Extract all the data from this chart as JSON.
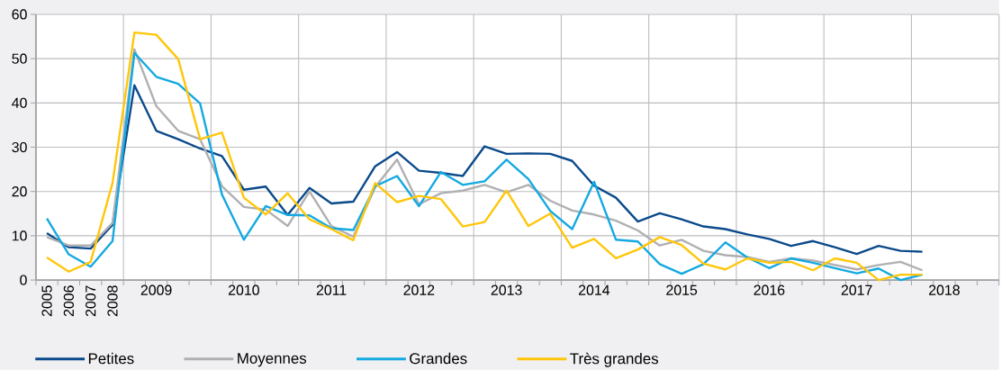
{
  "chart_data": {
    "type": "line",
    "categories": [
      "2005",
      "2006",
      "2007",
      "2008",
      null,
      "2009",
      null,
      null,
      null,
      "2010",
      null,
      null,
      null,
      "2011",
      null,
      null,
      null,
      "2012",
      null,
      null,
      null,
      "2013",
      null,
      null,
      null,
      "2014",
      null,
      null,
      null,
      "2015",
      null,
      null,
      null,
      "2016",
      null,
      null,
      null,
      "2017",
      null,
      null,
      null,
      "2018",
      null,
      null
    ],
    "series": [
      {
        "name": "Petites",
        "color": "#0b4a8b",
        "values": [
          10.6,
          7.4,
          7.1,
          12.5,
          44,
          33.7,
          31.8,
          29.7,
          28,
          20.4,
          21.1,
          14.7,
          20.8,
          17.3,
          17.7,
          25.7,
          28.9,
          24.7,
          24.2,
          23.5,
          30.2,
          28.5,
          28.6,
          28.5,
          26.9,
          21.3,
          18.6,
          13.2,
          15.1,
          13.7,
          12.1,
          11.5,
          10.3,
          9.3,
          7.7,
          8.8,
          7.4,
          5.9,
          7.7,
          6.6,
          6.4,
          null,
          null,
          null
        ]
      },
      {
        "name": "Moyennes",
        "color": "#b0b0b3",
        "values": [
          9.7,
          7.8,
          7.8,
          12.9,
          52.1,
          39.3,
          33.7,
          31.8,
          21.2,
          16.5,
          15.9,
          12.2,
          20,
          12.2,
          9.8,
          21,
          27.2,
          17.1,
          19.6,
          20.2,
          21.5,
          19.8,
          21.5,
          17.9,
          15.7,
          14.8,
          13.4,
          11.2,
          7.8,
          9.1,
          6.6,
          5.6,
          5.2,
          4.1,
          4.9,
          4.4,
          3.4,
          2.4,
          3.4,
          4.1,
          2.2,
          null,
          null,
          null
        ]
      },
      {
        "name": "Grandes",
        "color": "#14a9e1",
        "values": [
          13.9,
          5.8,
          3,
          8.8,
          51.3,
          45.9,
          44.3,
          39.9,
          19.3,
          9.1,
          16.7,
          14.7,
          14.6,
          11.7,
          11.3,
          21.2,
          23.5,
          16.7,
          24.4,
          21.5,
          22.3,
          27.2,
          22.8,
          15.6,
          11.5,
          22.2,
          9.1,
          8.7,
          3.6,
          1.4,
          3.6,
          8.5,
          5.1,
          2.7,
          4.9,
          3.9,
          2.7,
          1.5,
          2.6,
          0,
          1.2,
          null,
          null,
          null
        ]
      },
      {
        "name": "Très grandes",
        "color": "#ffc60a",
        "values": [
          5.1,
          1.9,
          4.1,
          21.9,
          55.9,
          55.4,
          49.9,
          31.8,
          33.3,
          18.6,
          14.8,
          19.6,
          13.7,
          11.5,
          9,
          21.9,
          17.6,
          19,
          18.3,
          12.1,
          13.1,
          20.2,
          12.2,
          15,
          7.3,
          9.3,
          4.9,
          6.9,
          9.7,
          7.9,
          3.7,
          2.4,
          4.9,
          3.9,
          4.1,
          2.2,
          4.9,
          3.9,
          0,
          1.2,
          1.2,
          null,
          null,
          null
        ]
      }
    ],
    "ylim": [
      0,
      60
    ],
    "yticks": [
      0,
      10,
      20,
      30,
      40,
      50,
      60
    ],
    "grid": true,
    "legend": "bottom"
  }
}
